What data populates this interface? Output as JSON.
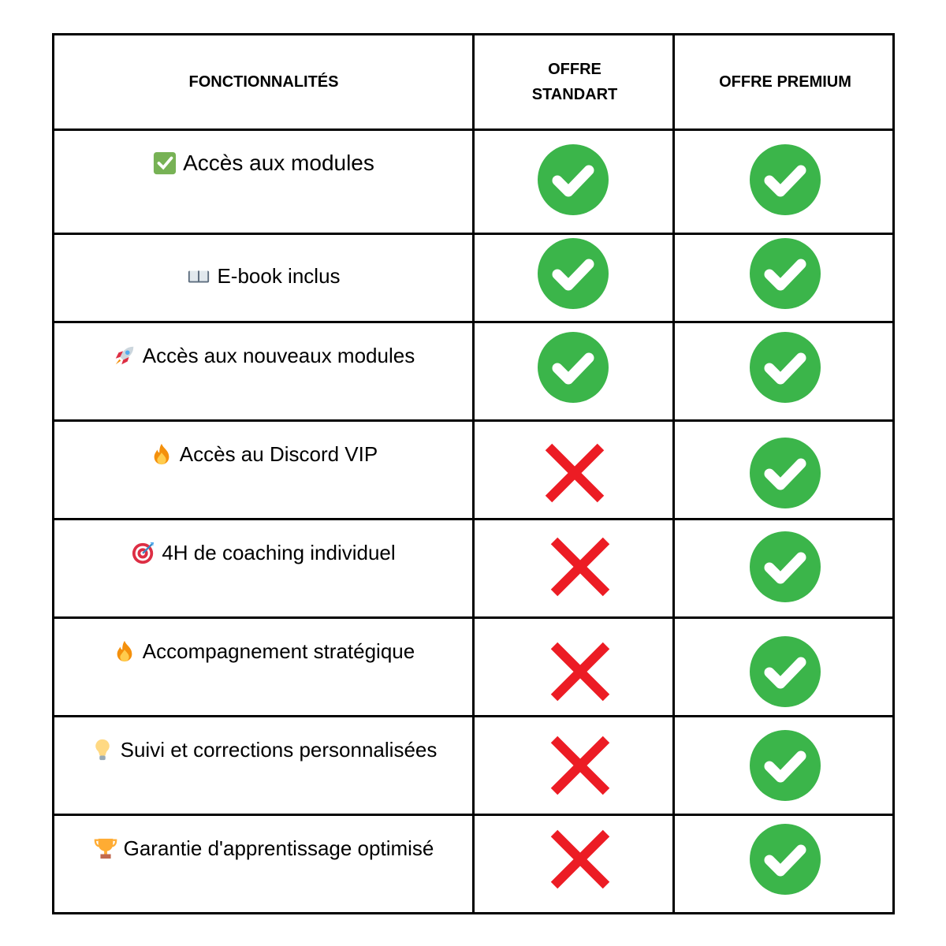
{
  "header": {
    "features": "FONCTIONNALITÉS",
    "standard": "OFFRE STANDART",
    "premium": "OFFRE PREMIUM"
  },
  "colors": {
    "check": "#3bb54a",
    "cross": "#ec1c24",
    "border": "#000000"
  },
  "rows": [
    {
      "icon": "check-box-icon",
      "label": "Accès aux modules",
      "standard": true,
      "premium": true
    },
    {
      "icon": "book-icon",
      "label": "E-book inclus",
      "standard": true,
      "premium": true
    },
    {
      "icon": "rocket-icon",
      "label": "Accès aux nouveaux modules",
      "standard": true,
      "premium": true
    },
    {
      "icon": "fire-icon",
      "label": "Accès au Discord VIP",
      "standard": false,
      "premium": true
    },
    {
      "icon": "target-icon",
      "label": "4H de coaching individuel",
      "standard": false,
      "premium": true
    },
    {
      "icon": "fire-icon",
      "label": "Accompagnement stratégique",
      "standard": false,
      "premium": true
    },
    {
      "icon": "lightbulb-icon",
      "label": "Suivi et corrections personnalisées",
      "standard": false,
      "premium": true
    },
    {
      "icon": "trophy-icon",
      "label": "Garantie d'apprentissage optimisé",
      "standard": false,
      "premium": true
    }
  ]
}
